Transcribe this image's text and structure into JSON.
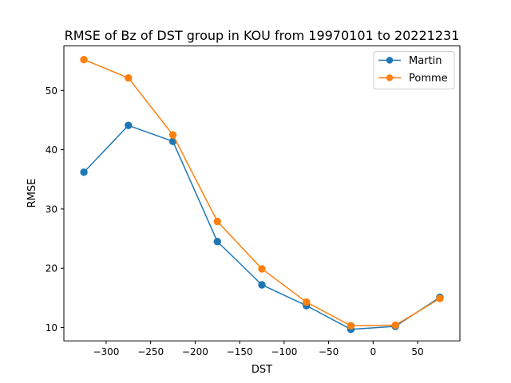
{
  "chart_data": {
    "type": "line",
    "title": "RMSE of Bz of DST group in KOU from 19970101 to 20221231",
    "xlabel": "DST",
    "ylabel": "RMSE",
    "x": [
      -325,
      -275,
      -225,
      -175,
      -125,
      -75,
      -25,
      25,
      75
    ],
    "xlim": [
      -347.5,
      97.5
    ],
    "ylim": [
      7.75,
      57.5
    ],
    "xticks": [
      -300,
      -250,
      -200,
      -150,
      -100,
      -50,
      0,
      50
    ],
    "xtick_labels": [
      "−300",
      "−250",
      "−200",
      "−150",
      "−100",
      "−50",
      "0",
      "50"
    ],
    "yticks": [
      10,
      20,
      30,
      40,
      50
    ],
    "ytick_labels": [
      "10",
      "20",
      "30",
      "40",
      "50"
    ],
    "grid": false,
    "legend_position": "top-right",
    "series": [
      {
        "name": "Martin",
        "color": "#1f77b4",
        "marker": "circle",
        "values": [
          36.2,
          44.1,
          41.4,
          24.5,
          17.2,
          13.7,
          9.7,
          10.2,
          15.1
        ]
      },
      {
        "name": "Pomme",
        "color": "#ff7f0e",
        "marker": "circle",
        "values": [
          55.2,
          52.1,
          42.5,
          27.9,
          19.9,
          14.3,
          10.3,
          10.4,
          14.9
        ]
      }
    ]
  }
}
